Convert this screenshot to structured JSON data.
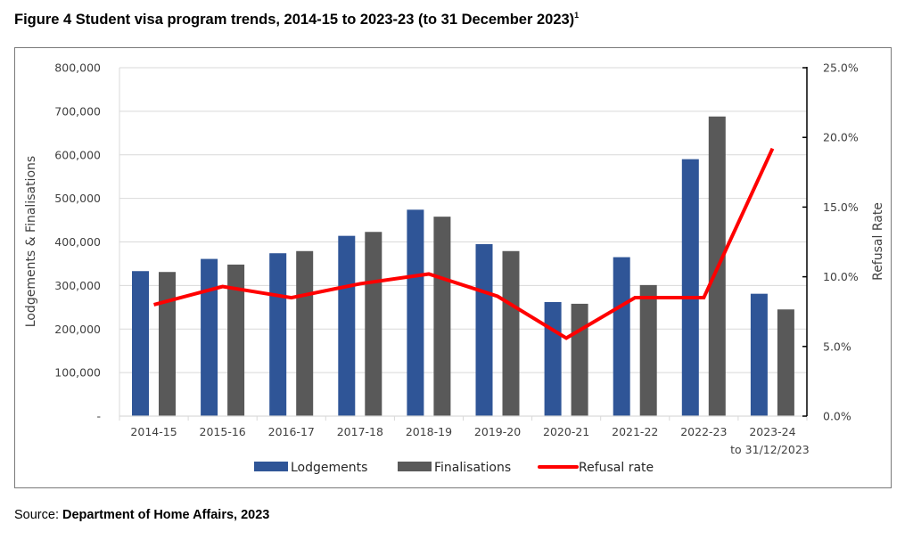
{
  "figure": {
    "title": "Figure 4 Student visa program trends, 2014-15 to 2023-23 (to 31 December 2023)",
    "footnote_marker": "1",
    "source_label": "Source:",
    "source_value": "Department of Home Affairs, 2023"
  },
  "colors": {
    "lodgements": "#2F5597",
    "finalisations": "#595959",
    "refusal_rate": "#FF0000",
    "gridline": "#D9D9D9",
    "frame": "#7A7A7A"
  },
  "chart_data": {
    "type": "bar",
    "title": "Figure 4 Student visa program trends, 2014-15 to 2023-23 (to 31 December 2023)",
    "categories": [
      "2014-15",
      "2015-16",
      "2016-17",
      "2017-18",
      "2018-19",
      "2019-20",
      "2020-21",
      "2021-22",
      "2022-23",
      "2023-24"
    ],
    "category_sublabels": [
      "",
      "",
      "",
      "",
      "",
      "",
      "",
      "",
      "",
      "to 31/12/2023"
    ],
    "ylabel": "Lodgements & Finalisations",
    "ylabel_right": "Refusal Rate",
    "ylim": [
      0,
      800000
    ],
    "ylim_right": [
      0,
      25
    ],
    "yticks": [
      "-",
      "100,000",
      "200,000",
      "300,000",
      "400,000",
      "500,000",
      "600,000",
      "700,000",
      "800,000"
    ],
    "yticks_right": [
      "0.0%",
      "5.0%",
      "10.0%",
      "15.0%",
      "20.0%",
      "25.0%"
    ],
    "grid": true,
    "legend_position": "bottom",
    "series": [
      {
        "name": "Lodgements",
        "kind": "bar",
        "axis": "left",
        "values": [
          333000,
          361000,
          374000,
          414000,
          474000,
          395000,
          262000,
          365000,
          590000,
          281000
        ]
      },
      {
        "name": "Finalisations",
        "kind": "bar",
        "axis": "left",
        "values": [
          331000,
          348000,
          379000,
          423000,
          458000,
          379000,
          258000,
          301000,
          688000,
          245000
        ]
      },
      {
        "name": "Refusal rate",
        "kind": "line",
        "axis": "right",
        "unit": "%",
        "values": [
          8.0,
          9.3,
          8.5,
          9.5,
          10.2,
          8.6,
          5.6,
          8.5,
          8.5,
          19.2
        ]
      }
    ]
  }
}
